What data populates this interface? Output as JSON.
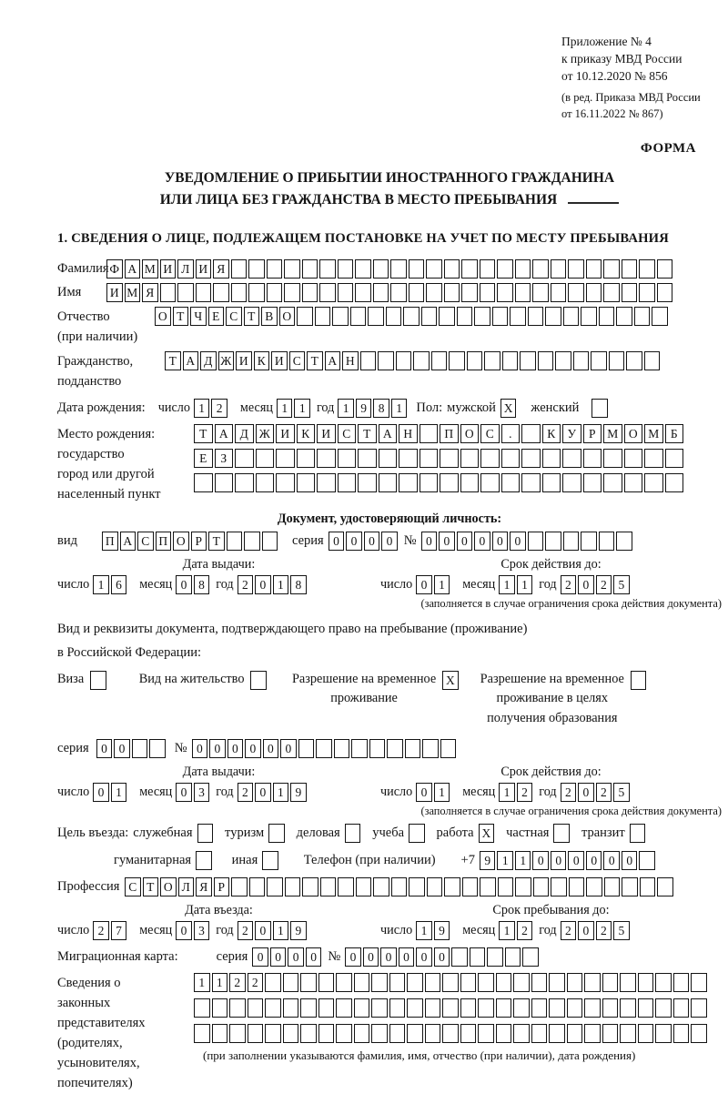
{
  "colors": {
    "ink": "#141414",
    "paper": "#ffffff"
  },
  "header": {
    "lines": [
      "Приложение № 4",
      "к приказу МВД России",
      "от 10.12.2020 № 856"
    ],
    "amendment_lines": [
      "(в ред. Приказа МВД России",
      "от 16.11.2022 № 867)"
    ],
    "form_label": "ФОРМА"
  },
  "title": {
    "line1": "УВЕДОМЛЕНИЕ О ПРИБЫТИИ ИНОСТРАННОГО ГРАЖДАНИНА",
    "line2": "ИЛИ ЛИЦА БЕЗ ГРАЖДАНСТВА В МЕСТО ПРЕБЫВАНИЯ"
  },
  "section1_heading": "1. СВЕДЕНИЯ О ЛИЦЕ, ПОДЛЕЖАЩЕМ ПОСТАНОВКЕ НА УЧЕТ ПО МЕСТУ ПРЕБЫВАНИЯ",
  "date_labels": {
    "day": "число",
    "month": "месяц",
    "year": "год"
  },
  "notes": {
    "validity": "(заполняется в случае ограничения срока действия документа)",
    "legal_reps": "(при заполнении указываются фамилия, имя, отчество (при наличии), дата рождения)"
  },
  "fields": {
    "surname": {
      "label": "Фамилия",
      "cells": {
        "value": "ФАМИЛИЯ",
        "count": 32
      }
    },
    "name": {
      "label": "Имя",
      "cells": {
        "value": "ИМЯ",
        "count": 32
      }
    },
    "patronymic": {
      "labels": [
        "Отчество",
        "(при наличии)"
      ],
      "cells": {
        "value": "ОТЧЕСТВО",
        "count": 29
      }
    },
    "citizenship": {
      "labels": [
        "Гражданство,",
        "подданство"
      ],
      "cells": {
        "value": "ТАДЖИКИСТАН",
        "count": 28
      }
    },
    "birth_date": {
      "label": "Дата рождения:",
      "day": {
        "value": "12",
        "count": 2
      },
      "month": {
        "value": "11",
        "count": 2
      },
      "year": {
        "value": "1981",
        "count": 4
      }
    },
    "sex": {
      "label": "Пол:",
      "male_label": "мужской",
      "female_label": "женский",
      "male_box": {
        "value": "X",
        "count": 1
      },
      "female_box": {
        "value": "",
        "count": 1
      }
    },
    "birth_place": {
      "labels": [
        "Место рождения:",
        "государство",
        "город или другой",
        "населенный пункт"
      ],
      "rows": [
        {
          "value": "ТАДЖИКИСТАН ПОС. КУРМОМБ",
          "count": 24
        },
        {
          "value": "ЕЗ",
          "count": 24
        },
        {
          "value": "",
          "count": 24
        }
      ]
    },
    "profession": {
      "label": "Профессия",
      "cells": {
        "value": "СТОЛЯР",
        "count": 31
      }
    }
  },
  "identity_doc": {
    "heading": "Документ, удостоверяющий личность:",
    "type_label": "вид",
    "type": {
      "value": "ПАСПОРТ",
      "count": 10
    },
    "series_label": "серия",
    "series": {
      "value": "0000",
      "count": 4
    },
    "number_label": "№",
    "number": {
      "value": "000000",
      "count": 12
    }
  },
  "date_sections": {
    "passport": {
      "issue_heading": "Дата выдачи:",
      "expiry_heading": "Срок действия до:",
      "issue": {
        "day": {
          "value": "16",
          "count": 2
        },
        "month": {
          "value": "08",
          "count": 2
        },
        "year": {
          "value": "2018",
          "count": 4
        }
      },
      "expiry": {
        "day": {
          "value": "01",
          "count": 2
        },
        "month": {
          "value": "11",
          "count": 2
        },
        "year": {
          "value": "2025",
          "count": 4
        }
      }
    },
    "permit": {
      "issue_heading": "Дата выдачи:",
      "expiry_heading": "Срок действия до:",
      "issue": {
        "day": {
          "value": "01",
          "count": 2
        },
        "month": {
          "value": "03",
          "count": 2
        },
        "year": {
          "value": "2019",
          "count": 4
        }
      },
      "expiry": {
        "day": {
          "value": "01",
          "count": 2
        },
        "month": {
          "value": "12",
          "count": 2
        },
        "year": {
          "value": "2025",
          "count": 4
        }
      }
    },
    "entry": {
      "issue_heading": "Дата въезда:",
      "expiry_heading": "Срок пребывания до:",
      "issue": {
        "day": {
          "value": "27",
          "count": 2
        },
        "month": {
          "value": "03",
          "count": 2
        },
        "year": {
          "value": "2019",
          "count": 4
        }
      },
      "expiry": {
        "day": {
          "value": "19",
          "count": 2
        },
        "month": {
          "value": "12",
          "count": 2
        },
        "year": {
          "value": "2025",
          "count": 4
        }
      }
    }
  },
  "residence_doc": {
    "intro_lines": [
      "Вид и реквизиты документа, подтверждающего право на пребывание (проживание)",
      "в Российской Федерации:"
    ],
    "options": [
      {
        "lines": [
          "Виза"
        ],
        "box": {
          "value": "",
          "count": 1
        }
      },
      {
        "lines": [
          "Вид на жительство"
        ],
        "box": {
          "value": "",
          "count": 1
        }
      },
      {
        "lines": [
          "Разрешение на временное",
          "проживание"
        ],
        "box": {
          "value": "X",
          "count": 1
        }
      },
      {
        "lines": [
          "Разрешение на временное",
          "проживание в целях",
          "получения образования"
        ],
        "box": {
          "value": "",
          "count": 1
        }
      }
    ],
    "series_label": "серия",
    "series": {
      "value": "00",
      "count": 4
    },
    "number_label": "№",
    "number": {
      "value": "000000",
      "count": 15
    }
  },
  "purpose": {
    "label": "Цель въезда:",
    "options": [
      {
        "label": "служебная",
        "box": {
          "value": "",
          "count": 1
        }
      },
      {
        "label": "туризм",
        "box": {
          "value": "",
          "count": 1
        }
      },
      {
        "label": "деловая",
        "box": {
          "value": "",
          "count": 1
        }
      },
      {
        "label": "учеба",
        "box": {
          "value": "",
          "count": 1
        }
      },
      {
        "label": "работа",
        "box": {
          "value": "X",
          "count": 1
        }
      },
      {
        "label": "частная",
        "box": {
          "value": "",
          "count": 1
        }
      },
      {
        "label": "транзит",
        "box": {
          "value": "",
          "count": 1
        }
      }
    ],
    "options2": [
      {
        "label": "гуманитарная",
        "box": {
          "value": "",
          "count": 1
        }
      },
      {
        "label": "иная",
        "box": {
          "value": "",
          "count": 1
        }
      }
    ],
    "phone_label": "Телефон (при наличии)",
    "phone_prefix": "+7",
    "phone": {
      "value": "911000000",
      "count": 10
    }
  },
  "migration_card": {
    "label": "Миграционная карта:",
    "series_label": "серия",
    "series": {
      "value": "0000",
      "count": 4
    },
    "number_label": "№",
    "number": {
      "value": "000000",
      "count": 11
    }
  },
  "legal_reps": {
    "labels": [
      "Сведения о",
      "законных",
      "представителях",
      "(родителях,",
      "усыновителях,",
      "попечителях)"
    ],
    "rows": [
      {
        "value": "1122",
        "count": 29
      },
      {
        "value": "",
        "count": 29
      },
      {
        "value": "",
        "count": 29
      }
    ]
  }
}
